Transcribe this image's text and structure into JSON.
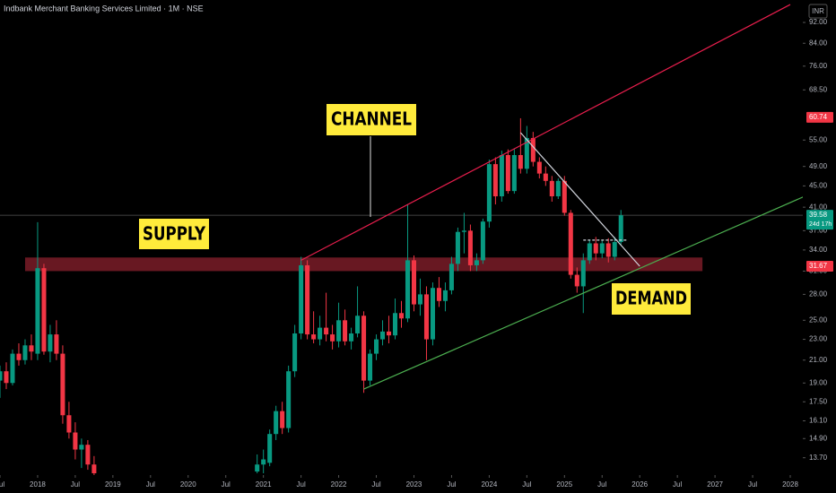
{
  "chart_data": {
    "type": "candlestick",
    "title": "Indbank Merchant Banking Services Limited · 1M · NSE",
    "currency": "INR",
    "log_scale": true,
    "up_color": "#089981",
    "down_color": "#f23645",
    "x": [
      "2017-07",
      "2017-08",
      "2017-09",
      "2017-10",
      "2017-11",
      "2017-12",
      "2018-01",
      "2018-02",
      "2018-03",
      "2018-04",
      "2018-05",
      "2018-06",
      "2018-07",
      "2018-08",
      "2018-09",
      "2018-10",
      "2020-12",
      "2021-01",
      "2021-02",
      "2021-03",
      "2021-04",
      "2021-05",
      "2021-06",
      "2021-07",
      "2021-08",
      "2021-09",
      "2021-10",
      "2021-11",
      "2021-12",
      "2022-01",
      "2022-02",
      "2022-03",
      "2022-04",
      "2022-05",
      "2022-06",
      "2022-07",
      "2022-08",
      "2022-09",
      "2022-10",
      "2022-11",
      "2022-12",
      "2023-01",
      "2023-02",
      "2023-03",
      "2023-04",
      "2023-05",
      "2023-06",
      "2023-07",
      "2023-08",
      "2023-09",
      "2023-10",
      "2023-11",
      "2023-12",
      "2024-01",
      "2024-02",
      "2024-03",
      "2024-04",
      "2024-05",
      "2024-06",
      "2024-07",
      "2024-08",
      "2024-09",
      "2024-10",
      "2024-11",
      "2024-12",
      "2025-01",
      "2025-02",
      "2025-03",
      "2025-04",
      "2025-05",
      "2025-06",
      "2025-07",
      "2025-08",
      "2025-09",
      "2025-10"
    ],
    "open": [
      19.2,
      20.0,
      19.0,
      21.6,
      21.0,
      22.4,
      21.6,
      31.4,
      21.8,
      23.5,
      21.6,
      16.5,
      15.3,
      14.2,
      14.5,
      13.3,
      12.9,
      13.3,
      13.4,
      15.2,
      16.8,
      15.6,
      20.0,
      23.6,
      31.8,
      23.5,
      23.0,
      24.2,
      23.5,
      22.8,
      25.0,
      22.8,
      23.6,
      25.5,
      19.2,
      21.6,
      23.0,
      23.8,
      23.4,
      25.8,
      25.2,
      32.5,
      26.8,
      28.0,
      23.0,
      28.8,
      27.2,
      28.5,
      32.0,
      36.8,
      37.0,
      31.8,
      32.5,
      38.5,
      49.5,
      43.0,
      51.5,
      44.0,
      51.5,
      48.5,
      55.5,
      50.0,
      47.5,
      46.0,
      43.0,
      46.0,
      40.0,
      30.5,
      29.0,
      32.5,
      35.0,
      33.5,
      35.0,
      33.0,
      35.2
    ],
    "high": [
      20.5,
      20.8,
      22.0,
      22.6,
      23.0,
      23.5,
      38.4,
      32.0,
      24.5,
      25.0,
      22.4,
      17.5,
      16.0,
      14.9,
      14.8,
      13.8,
      13.9,
      14.2,
      15.5,
      17.2,
      17.5,
      20.5,
      24.5,
      33.0,
      32.5,
      26.0,
      25.5,
      28.2,
      24.5,
      27.0,
      26.2,
      24.2,
      29.0,
      26.0,
      22.0,
      23.5,
      25.0,
      25.5,
      27.5,
      27.2,
      41.5,
      33.2,
      30.0,
      29.0,
      29.5,
      30.2,
      29.5,
      33.0,
      37.5,
      40.0,
      38.0,
      33.5,
      39.0,
      50.5,
      51.0,
      52.5,
      52.8,
      53.0,
      60.5,
      58.5,
      57.0,
      51.0,
      49.0,
      47.0,
      46.5,
      47.0,
      40.5,
      31.5,
      33.5,
      35.5,
      36.0,
      35.5,
      35.8,
      36.0,
      40.5
    ],
    "low": [
      17.8,
      18.5,
      18.8,
      20.5,
      20.6,
      21.0,
      21.0,
      21.5,
      20.8,
      21.0,
      15.9,
      14.9,
      13.6,
      13.1,
      13.0,
      12.0,
      12.8,
      12.8,
      13.2,
      14.8,
      15.2,
      15.3,
      19.5,
      23.0,
      23.0,
      22.6,
      22.4,
      22.8,
      22.0,
      22.2,
      22.4,
      22.0,
      23.2,
      18.2,
      18.8,
      21.0,
      22.4,
      22.6,
      23.0,
      24.2,
      24.8,
      26.0,
      25.5,
      21.0,
      22.4,
      26.5,
      26.0,
      28.0,
      31.0,
      33.5,
      31.0,
      31.0,
      32.0,
      37.5,
      41.5,
      42.0,
      43.5,
      43.5,
      47.5,
      47.5,
      49.0,
      46.5,
      45.0,
      42.0,
      42.5,
      39.5,
      30.0,
      28.2,
      25.8,
      32.0,
      32.5,
      32.8,
      32.2,
      32.5,
      34.8
    ],
    "close": [
      20.0,
      19.0,
      21.6,
      21.0,
      22.4,
      21.8,
      31.4,
      21.8,
      23.5,
      21.6,
      16.5,
      15.3,
      14.2,
      14.5,
      13.3,
      12.8,
      13.3,
      13.6,
      15.2,
      16.8,
      15.6,
      20.0,
      23.6,
      31.8,
      23.5,
      23.0,
      24.2,
      23.5,
      22.8,
      25.0,
      22.8,
      23.6,
      25.5,
      19.2,
      21.6,
      23.0,
      23.8,
      23.4,
      25.8,
      25.2,
      32.5,
      26.8,
      28.0,
      23.0,
      28.8,
      27.2,
      28.5,
      32.0,
      36.8,
      37.0,
      31.8,
      32.5,
      38.5,
      49.5,
      43.0,
      51.5,
      44.0,
      51.5,
      48.5,
      55.5,
      50.0,
      47.5,
      46.0,
      43.0,
      46.0,
      40.0,
      30.5,
      29.0,
      32.5,
      35.0,
      33.5,
      35.0,
      33.0,
      35.2,
      39.58
    ],
    "xlim": [
      "2017-07",
      "2028-03"
    ],
    "xticks": [
      {
        "value": "2017-07",
        "label": "Jul"
      },
      {
        "value": "2018-01",
        "label": "2018"
      },
      {
        "value": "2018-07",
        "label": "Jul"
      },
      {
        "value": "2019-01",
        "label": "2019"
      },
      {
        "value": "2019-07",
        "label": "Jul"
      },
      {
        "value": "2020-01",
        "label": "2020"
      },
      {
        "value": "2020-07",
        "label": "Jul"
      },
      {
        "value": "2021-01",
        "label": "2021"
      },
      {
        "value": "2021-07",
        "label": "Jul"
      },
      {
        "value": "2022-01",
        "label": "2022"
      },
      {
        "value": "2022-07",
        "label": "Jul"
      },
      {
        "value": "2023-01",
        "label": "2023"
      },
      {
        "value": "2023-07",
        "label": "Jul"
      },
      {
        "value": "2024-01",
        "label": "2024"
      },
      {
        "value": "2024-07",
        "label": "Jul"
      },
      {
        "value": "2025-01",
        "label": "2025"
      },
      {
        "value": "2025-07",
        "label": "Jul"
      },
      {
        "value": "2026-01",
        "label": "2026"
      },
      {
        "value": "2026-07",
        "label": "Jul"
      },
      {
        "value": "2027-01",
        "label": "2027"
      },
      {
        "value": "2027-07",
        "label": "Jul"
      },
      {
        "value": "2028-01",
        "label": "2028"
      }
    ],
    "ylim": [
      12.7,
      101.5
    ],
    "yticks": [
      {
        "value": 13.7,
        "label": "13.70"
      },
      {
        "value": 14.9,
        "label": "14.90"
      },
      {
        "value": 16.1,
        "label": "16.10"
      },
      {
        "value": 17.5,
        "label": "17.50"
      },
      {
        "value": 19,
        "label": "19.00"
      },
      {
        "value": 21,
        "label": "21.00"
      },
      {
        "value": 23,
        "label": "23.00"
      },
      {
        "value": 25,
        "label": "25.00"
      },
      {
        "value": 28,
        "label": "28.00"
      },
      {
        "value": 31,
        "label": "31.00"
      },
      {
        "value": 34,
        "label": "34.00"
      },
      {
        "value": 37,
        "label": "37.00"
      },
      {
        "value": 41,
        "label": "41.00"
      },
      {
        "value": 45,
        "label": "45.00"
      },
      {
        "value": 49,
        "label": "49.00"
      },
      {
        "value": 55,
        "label": "55.00"
      },
      {
        "value": 68.5,
        "label": "68.50"
      },
      {
        "value": 76,
        "label": "76.00"
      },
      {
        "value": 84,
        "label": "84.00"
      },
      {
        "value": 92,
        "label": "92.00"
      }
    ],
    "price_tags": [
      {
        "value": 60.74,
        "color": "#f23645"
      },
      {
        "value": 39.58,
        "color": "#089981",
        "countdown": "24d 17h",
        "line": true
      },
      {
        "value": 31.67,
        "color": "#f23645"
      }
    ],
    "zone": {
      "x": [
        "2017-11",
        "2026-11"
      ],
      "y": [
        31.0,
        32.9
      ],
      "color": "#7a1c28"
    },
    "trendlines": [
      {
        "x": [
          "2021-07",
          "2028-01"
        ],
        "y": [
          32.5,
          99.5
        ],
        "color": "#e91e4d",
        "dash": false
      },
      {
        "x": [
          "2022-05",
          "2028-08"
        ],
        "y": [
          18.5,
          45.5
        ],
        "color": "#4caf50",
        "dash": false
      },
      {
        "x": [
          "2024-06",
          "2026-01"
        ],
        "y": [
          56.8,
          31.67
        ],
        "color": "#d1d4dc",
        "dash": false
      },
      {
        "x": [
          "2025-04",
          "2025-11"
        ],
        "y": [
          35.5,
          35.5
        ],
        "color": "#d1d4dc",
        "dash": true
      }
    ],
    "annotations": [
      "CHANNEL",
      "SUPPLY",
      "DEMAND"
    ]
  }
}
